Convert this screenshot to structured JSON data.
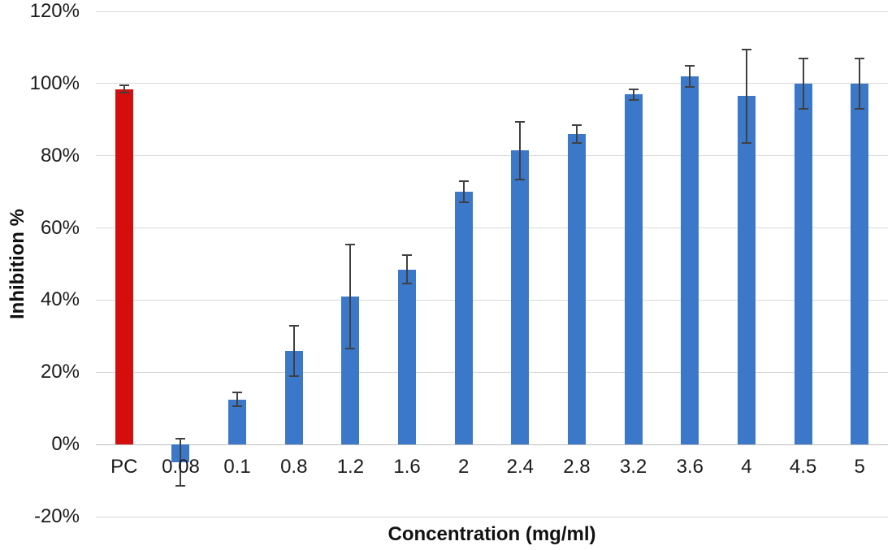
{
  "chart_data": {
    "type": "bar",
    "title": "",
    "xlabel": "Concentration (mg/ml)",
    "ylabel": "Inhibition %",
    "categories": [
      "PC",
      "0.08",
      "0.1",
      "0.8",
      "1.2",
      "1.6",
      "2",
      "2.4",
      "2.8",
      "3.2",
      "3.6",
      "4",
      "4.5",
      "5"
    ],
    "values": [
      98.5,
      -5,
      12.5,
      26,
      41,
      48.5,
      70,
      81.5,
      86,
      97,
      102,
      96.5,
      100,
      100
    ],
    "errors": [
      1,
      6.5,
      2,
      7,
      14.5,
      4,
      3,
      8,
      2.5,
      1.5,
      3,
      13,
      7,
      7
    ],
    "bar_colors": [
      "#D60D0D",
      "#3B78C9",
      "#3B78C9",
      "#3B78C9",
      "#3B78C9",
      "#3B78C9",
      "#3B78C9",
      "#3B78C9",
      "#3B78C9",
      "#3B78C9",
      "#3B78C9",
      "#3B78C9",
      "#3B78C9",
      "#3B78C9"
    ],
    "error_bar_color": "#404040",
    "ylim": [
      -20,
      120
    ],
    "y_ticks": [
      {
        "value": 120,
        "label": "120%"
      },
      {
        "value": 100,
        "label": "100%"
      },
      {
        "value": 80,
        "label": "80%"
      },
      {
        "value": 60,
        "label": "60%"
      },
      {
        "value": 40,
        "label": "40%"
      },
      {
        "value": 20,
        "label": "20%"
      },
      {
        "value": 0,
        "label": "0%"
      },
      {
        "value": -20,
        "label": "-20%"
      }
    ],
    "grid": true,
    "legend": "none"
  },
  "colors": {
    "background": "#FFFFFF",
    "gridline": "#D9D9D9",
    "axis_line": "#BDBDBD",
    "tick_text": "#1C1C1C",
    "title_text": "#111111"
  }
}
